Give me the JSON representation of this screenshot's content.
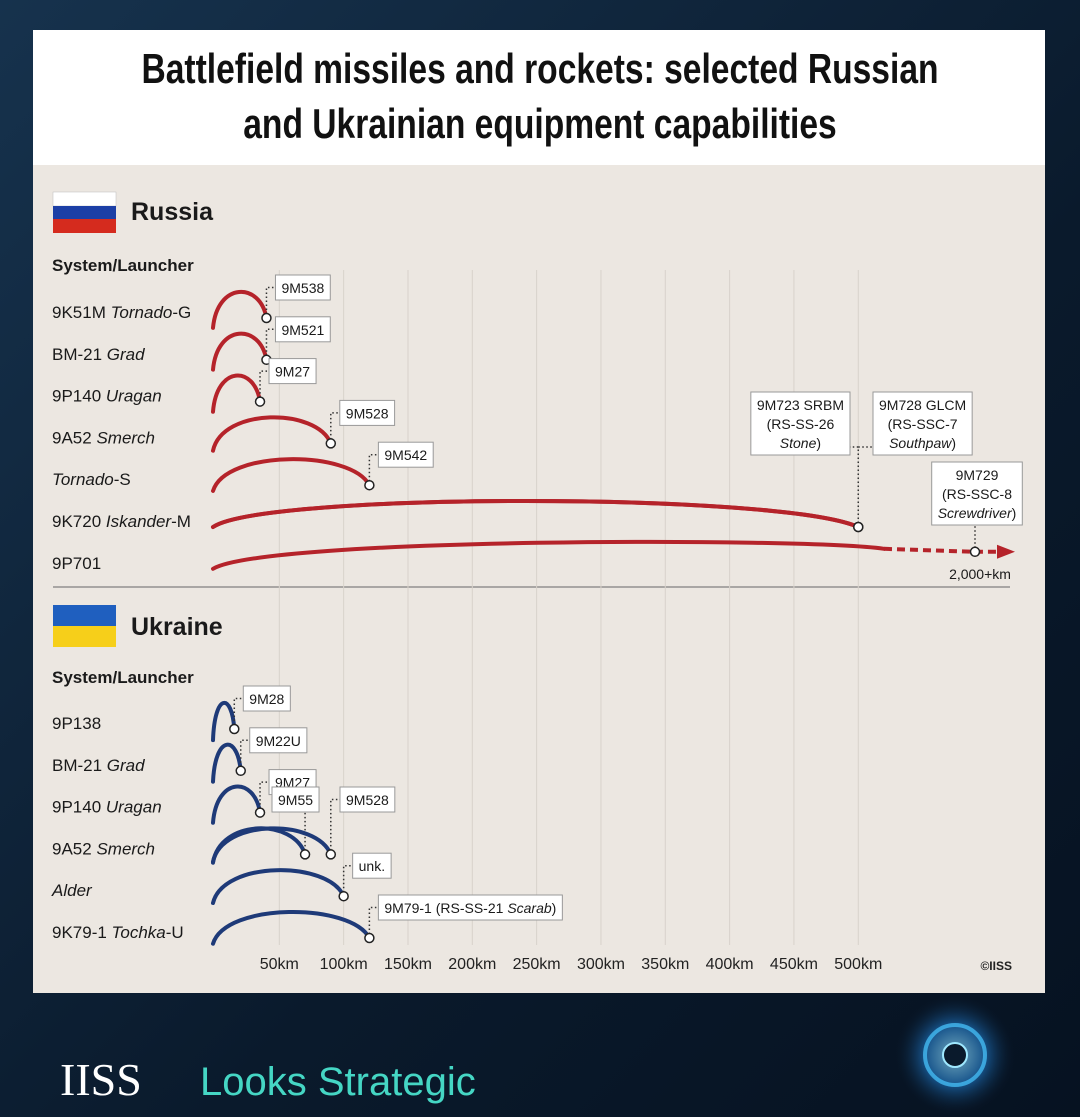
{
  "chart_data": {
    "type": "range-arc",
    "title": [
      "Battlefield missiles and rockets: selected Russian",
      "and Ukrainian equipment capabilities"
    ],
    "xlim": [
      0,
      520
    ],
    "xticks": [
      {
        "value": 50,
        "label": "50km"
      },
      {
        "value": 100,
        "label": "100km"
      },
      {
        "value": 150,
        "label": "150km"
      },
      {
        "value": 200,
        "label": "200km"
      },
      {
        "value": 250,
        "label": "250km"
      },
      {
        "value": 300,
        "label": "300km"
      },
      {
        "value": 350,
        "label": "350km"
      },
      {
        "value": 400,
        "label": "400km"
      },
      {
        "value": 450,
        "label": "450km"
      },
      {
        "value": 500,
        "label": "500km"
      }
    ],
    "grid": true,
    "credit": "©IISS",
    "groups": [
      {
        "name": "Russia",
        "axis_label": "System/Launcher",
        "color": "#b5232a",
        "rows": [
          {
            "launcher": [
              "9K51M ",
              {
                "italic": "Tornado"
              },
              "-G"
            ],
            "missiles": [
              {
                "label": [
                  [
                    "9M538"
                  ]
                ],
                "value": 40
              }
            ]
          },
          {
            "launcher": [
              "BM-21 ",
              {
                "italic": "Grad"
              }
            ],
            "missiles": [
              {
                "label": [
                  [
                    "9M521"
                  ]
                ],
                "value": 40
              }
            ]
          },
          {
            "launcher": [
              "9P140 ",
              {
                "italic": "Uragan"
              }
            ],
            "missiles": [
              {
                "label": [
                  [
                    "9M27"
                  ]
                ],
                "value": 35
              }
            ]
          },
          {
            "launcher": [
              "9A52 ",
              {
                "italic": "Smerch"
              }
            ],
            "missiles": [
              {
                "label": [
                  [
                    "9M528"
                  ]
                ],
                "value": 90
              }
            ]
          },
          {
            "launcher": [
              {
                "italic": "Tornado"
              },
              "-S"
            ],
            "missiles": [
              {
                "label": [
                  [
                    "9M542"
                  ]
                ],
                "value": 120
              }
            ]
          },
          {
            "launcher": [
              "9K720 ",
              {
                "italic": "Iskander"
              },
              "-M"
            ],
            "missiles": [
              {
                "label": [
                  [
                    "9M723 SRBM"
                  ],
                  [
                    "(RS-SS-26"
                  ],
                  [
                    {
                      "italic": "Stone"
                    },
                    ")"
                  ]
                ],
                "value": 500
              },
              {
                "label": [
                  [
                    "9M728 GLCM"
                  ],
                  [
                    "(RS-SSC-7"
                  ],
                  [
                    {
                      "italic": "Southpaw"
                    },
                    ")"
                  ]
                ],
                "value": 500
              }
            ]
          },
          {
            "launcher": [
              "9P701"
            ],
            "missiles": [
              {
                "label": [
                  [
                    "9M729"
                  ],
                  [
                    "(RS-SSC-8"
                  ],
                  [
                    {
                      "italic": "Screwdriver"
                    },
                    ")"
                  ]
                ],
                "value": 2000,
                "value_label": "2,000+km"
              }
            ]
          }
        ]
      },
      {
        "name": "Ukraine",
        "axis_label": "System/Launcher",
        "color": "#1e3a78",
        "rows": [
          {
            "launcher": [
              "9P138"
            ],
            "missiles": [
              {
                "label": [
                  [
                    "9M28"
                  ]
                ],
                "value": 15
              }
            ]
          },
          {
            "launcher": [
              "BM-21 ",
              {
                "italic": "Grad"
              }
            ],
            "missiles": [
              {
                "label": [
                  [
                    "9M22U"
                  ]
                ],
                "value": 20
              }
            ]
          },
          {
            "launcher": [
              "9P140 ",
              {
                "italic": "Uragan"
              }
            ],
            "missiles": [
              {
                "label": [
                  [
                    "9M27"
                  ]
                ],
                "value": 35
              }
            ]
          },
          {
            "launcher": [
              "9A52 ",
              {
                "italic": "Smerch"
              }
            ],
            "missiles": [
              {
                "label": [
                  [
                    "9M55"
                  ]
                ],
                "value": 70
              },
              {
                "label": [
                  [
                    "9M528"
                  ]
                ],
                "value": 90
              }
            ]
          },
          {
            "launcher": [
              {
                "italic": "Alder"
              }
            ],
            "missiles": [
              {
                "label": [
                  [
                    "unk."
                  ]
                ],
                "value": 100
              }
            ]
          },
          {
            "launcher": [
              "9K79-1 ",
              {
                "italic": "Tochka"
              },
              "-U"
            ],
            "missiles": [
              {
                "label": [
                  [
                    "9M79-1 (RS-SS-21 ",
                    {
                      "italic": "Scarab"
                    },
                    ")"
                  ]
                ],
                "value": 120
              }
            ]
          }
        ]
      }
    ]
  },
  "footer": {
    "logo": "IISS",
    "tagline": "Looks Strategic"
  }
}
